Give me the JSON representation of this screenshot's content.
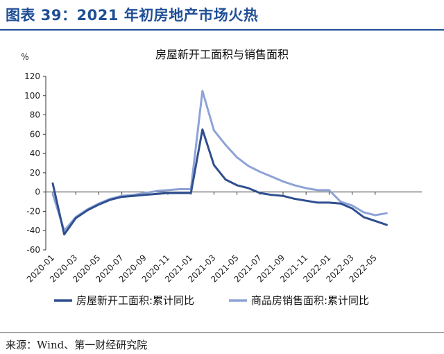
{
  "header": {
    "figure_title": "图表 39：2021 年初房地产市场火热"
  },
  "footer": {
    "source": "来源：Wind、第一财经研究院"
  },
  "chart_data": {
    "type": "line",
    "title": "房屋新开工面积与销售面积",
    "ylabel": "%",
    "xlabel": "",
    "ylim": [
      -60,
      120
    ],
    "yticks": [
      -60,
      -40,
      -20,
      0,
      20,
      40,
      60,
      80,
      100,
      120
    ],
    "grid": false,
    "legend_position": "bottom",
    "x": [
      "2020-01",
      "2020-02",
      "2020-03",
      "2020-04",
      "2020-05",
      "2020-06",
      "2020-07",
      "2020-08",
      "2020-09",
      "2020-10",
      "2020-11",
      "2020-12",
      "2021-01",
      "2021-02",
      "2021-03",
      "2021-04",
      "2021-05",
      "2021-06",
      "2021-07",
      "2021-08",
      "2021-09",
      "2021-10",
      "2021-11",
      "2021-12",
      "2022-01",
      "2022-02",
      "2022-03",
      "2022-04",
      "2022-05",
      "2022-06"
    ],
    "x_tick_labels": [
      "2020-01",
      "2020-03",
      "2020-05",
      "2020-07",
      "2020-09",
      "2020-11",
      "2021-01",
      "2021-03",
      "2021-05",
      "2021-07",
      "2021-09",
      "2021-11",
      "2022-01",
      "2022-03",
      "2022-05"
    ],
    "series": [
      {
        "name": "房屋新开工面积:累计同比",
        "color": "#2f4f8f",
        "values": [
          9,
          -44,
          -27,
          -19,
          -13,
          -8,
          -5,
          -4,
          -3,
          -2,
          -1,
          -1,
          -1,
          64.9,
          28,
          13,
          7,
          4,
          -1,
          -3,
          -4,
          -7,
          -9,
          -11,
          -11,
          -12,
          -17,
          -26,
          -30,
          -34
        ]
      },
      {
        "name": "商品房销售面积:累计同比",
        "color": "#8ea3d6",
        "values": [
          -2,
          -40,
          -26,
          -18,
          -12,
          -7,
          -4,
          -3,
          -1,
          1,
          2,
          3,
          3,
          104.9,
          64,
          49,
          36,
          27,
          21,
          16,
          11,
          7,
          4,
          2,
          2,
          -10,
          -14,
          -21,
          -24,
          -22
        ]
      }
    ]
  }
}
